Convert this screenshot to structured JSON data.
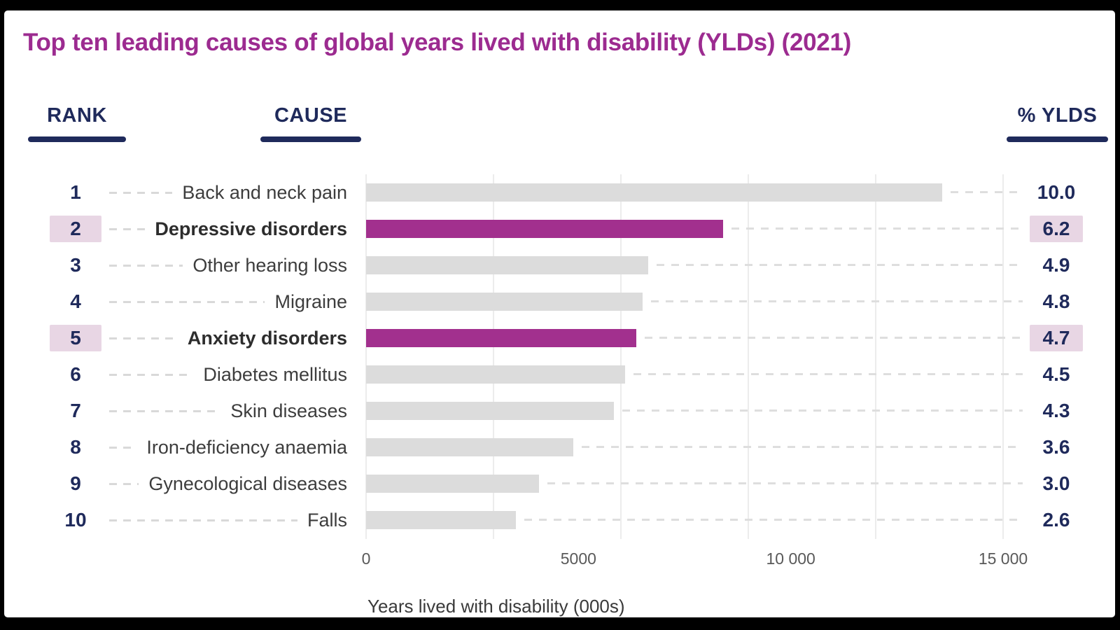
{
  "title": "Top ten leading causes of global years lived with disability (YLDs) (2021)",
  "columns": {
    "rank": "RANK",
    "cause": "CAUSE",
    "pct": "% YLDS"
  },
  "chart_data": {
    "type": "bar",
    "orientation": "horizontal",
    "title": "Top ten leading causes of global years lived with disability (YLDs) (2021)",
    "xlabel": "Years lived with disability (000s)",
    "xlim": [
      0,
      15000
    ],
    "gridline_interval": 3000,
    "grid": true,
    "x_ticks": [
      {
        "value": 0,
        "label": "0"
      },
      {
        "value": 5000,
        "label": "5000"
      },
      {
        "value": 10000,
        "label": "10 000"
      },
      {
        "value": 15000,
        "label": "15 000"
      }
    ],
    "rows": [
      {
        "rank": 1,
        "cause": "Back and neck pain",
        "ylds_000s": 13560,
        "pct_ylds": "10.0",
        "highlighted": false
      },
      {
        "rank": 2,
        "cause": "Depressive disorders",
        "ylds_000s": 8410,
        "pct_ylds": "6.2",
        "highlighted": true
      },
      {
        "rank": 3,
        "cause": "Other hearing loss",
        "ylds_000s": 6640,
        "pct_ylds": "4.9",
        "highlighted": false
      },
      {
        "rank": 4,
        "cause": "Migraine",
        "ylds_000s": 6510,
        "pct_ylds": "4.8",
        "highlighted": false
      },
      {
        "rank": 5,
        "cause": "Anxiety disorders",
        "ylds_000s": 6370,
        "pct_ylds": "4.7",
        "highlighted": true
      },
      {
        "rank": 6,
        "cause": "Diabetes mellitus",
        "ylds_000s": 6100,
        "pct_ylds": "4.5",
        "highlighted": false
      },
      {
        "rank": 7,
        "cause": "Skin diseases",
        "ylds_000s": 5830,
        "pct_ylds": "4.3",
        "highlighted": false
      },
      {
        "rank": 8,
        "cause": "Iron-deficiency anaemia",
        "ylds_000s": 4880,
        "pct_ylds": "3.6",
        "highlighted": false
      },
      {
        "rank": 9,
        "cause": "Gynecological diseases",
        "ylds_000s": 4070,
        "pct_ylds": "3.0",
        "highlighted": false
      },
      {
        "rank": 10,
        "cause": "Falls",
        "ylds_000s": 3530,
        "pct_ylds": "2.6",
        "highlighted": false
      }
    ],
    "colors": {
      "title_purple": "#9c2b90",
      "bar_default": "#dcdcdc",
      "bar_highlight": "#a2308e",
      "highlight_bg": "#e8d6e4",
      "navy": "#1f2a5b",
      "gridline": "#ececec",
      "leader_dash": "#d9d9d9"
    }
  }
}
